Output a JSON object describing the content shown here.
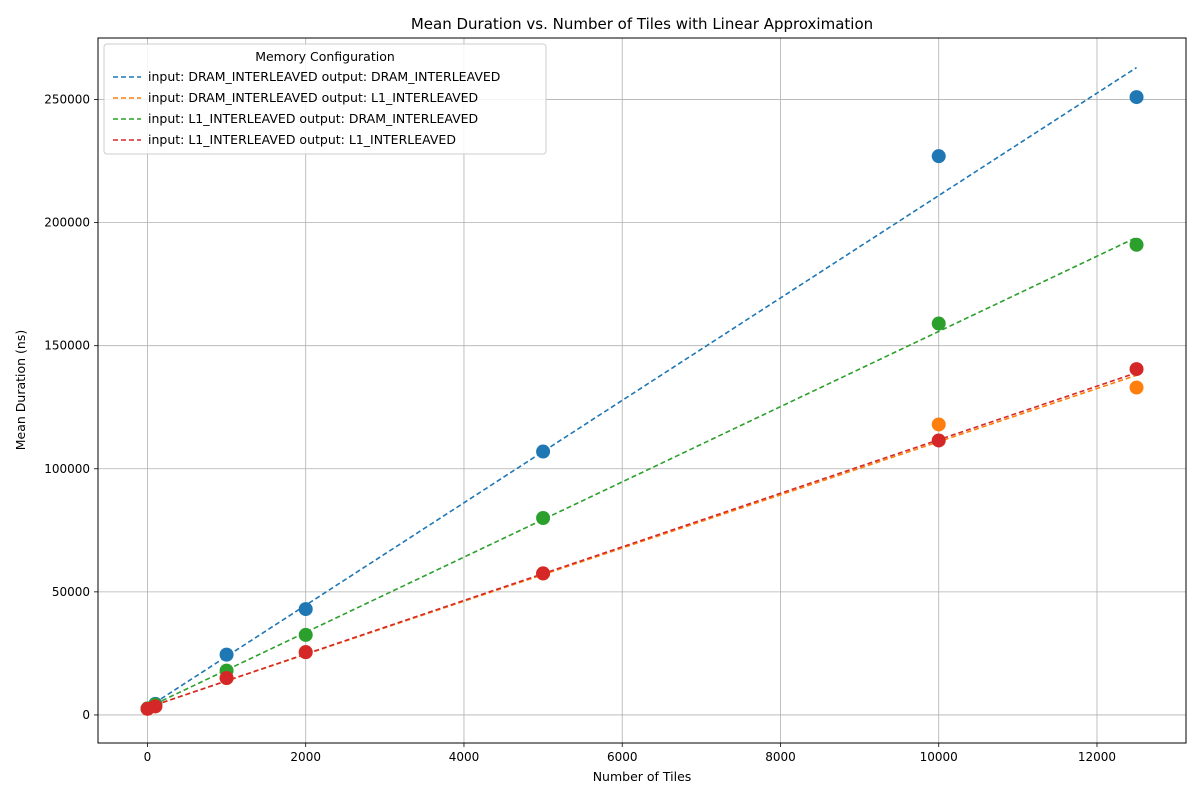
{
  "chart_data": {
    "type": "scatter",
    "title": "Mean Duration vs. Number of Tiles with Linear Approximation",
    "xlabel": "Number of Tiles",
    "ylabel": "Mean Duration (ns)",
    "xlim": [
      -625,
      13125
    ],
    "ylim": [
      -11400,
      275000
    ],
    "xticks": [
      0,
      2000,
      4000,
      6000,
      8000,
      10000,
      12000
    ],
    "yticks": [
      0,
      50000,
      100000,
      150000,
      200000,
      250000
    ],
    "grid": true,
    "legend": {
      "title": "Memory Configuration",
      "placement": "top-left"
    },
    "series": [
      {
        "name": "input: DRAM_INTERLEAVED output: DRAM_INTERLEAVED",
        "color": "#1f77b4",
        "x": [
          1,
          100,
          1000,
          2000,
          5000,
          10000,
          12500
        ],
        "y": [
          2600,
          4500,
          24500,
          43000,
          107000,
          227000,
          251000
        ],
        "fit": {
          "x": [
            1,
            12500
          ],
          "y": [
            3000,
            263000
          ]
        }
      },
      {
        "name": "input: DRAM_INTERLEAVED output: L1_INTERLEAVED",
        "color": "#ff7f0e",
        "x": [
          1,
          100,
          1000,
          2000,
          5000,
          10000,
          12500
        ],
        "y": [
          2500,
          3500,
          15000,
          25500,
          57500,
          118000,
          133000
        ],
        "fit": {
          "x": [
            1,
            12500
          ],
          "y": [
            3000,
            138000
          ]
        }
      },
      {
        "name": "input: L1_INTERLEAVED output: DRAM_INTERLEAVED",
        "color": "#2ca02c",
        "x": [
          1,
          100,
          1000,
          2000,
          5000,
          10000,
          12500
        ],
        "y": [
          2600,
          4200,
          18000,
          32500,
          80000,
          159000,
          191000
        ],
        "fit": {
          "x": [
            1,
            12500
          ],
          "y": [
            3000,
            194000
          ]
        }
      },
      {
        "name": "input: L1_INTERLEAVED output: L1_INTERLEAVED",
        "color": "#d62728",
        "x": [
          1,
          100,
          1000,
          2000,
          5000,
          10000,
          12500
        ],
        "y": [
          2500,
          3500,
          15000,
          25500,
          57500,
          111500,
          140500
        ],
        "fit": {
          "x": [
            1,
            12500
          ],
          "y": [
            3000,
            139000
          ]
        }
      }
    ]
  }
}
